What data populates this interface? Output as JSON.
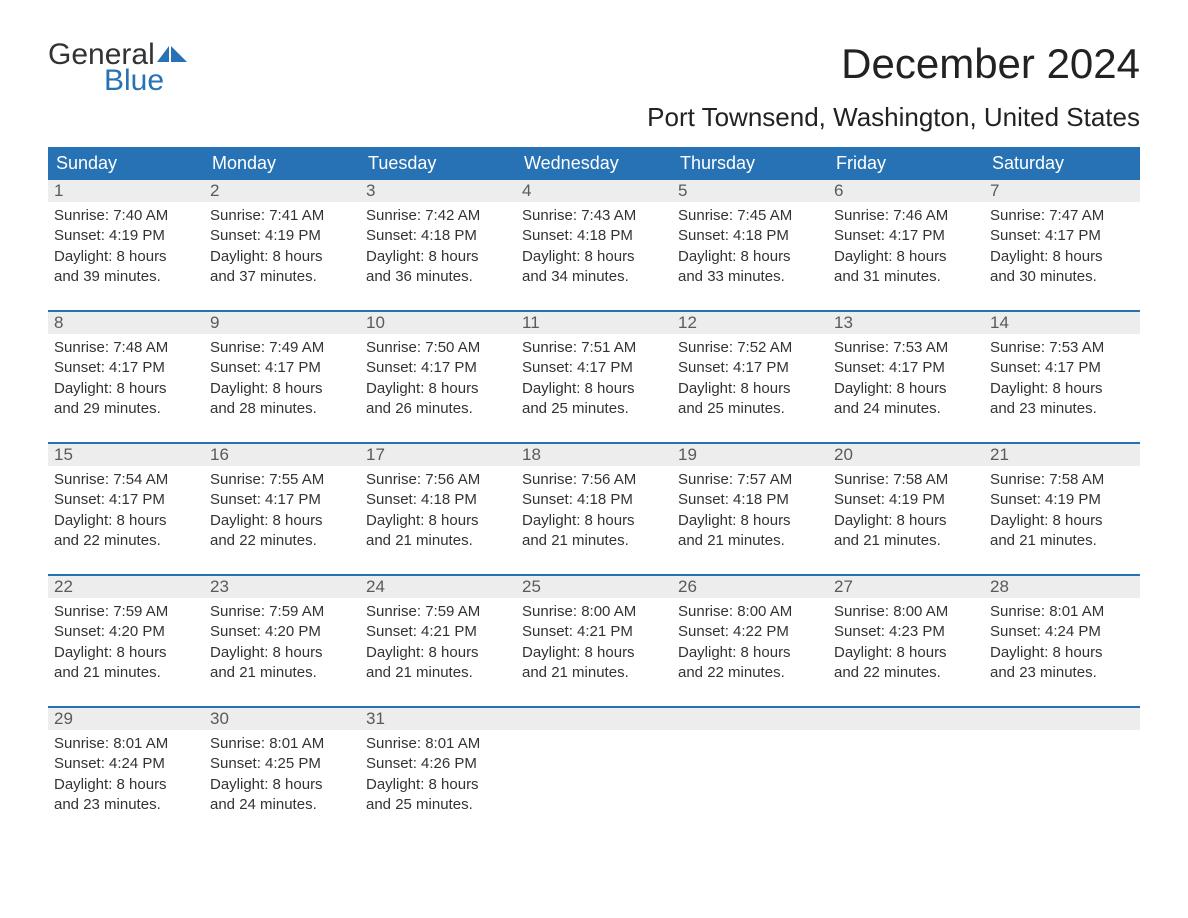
{
  "logo": {
    "line1": "General",
    "line2": "Blue",
    "accent_color": "#2772b5"
  },
  "title": "December 2024",
  "location": "Port Townsend, Washington, United States",
  "colors": {
    "header_bg": "#2772b5",
    "header_text": "#ffffff",
    "daynum_bg": "#ededed",
    "daynum_text": "#5a5a5a",
    "body_text": "#333333",
    "divider": "#2772b5",
    "background": "#ffffff"
  },
  "fonts": {
    "title_size_pt": 32,
    "location_size_pt": 20,
    "header_size_pt": 14,
    "body_size_pt": 11
  },
  "days_of_week": [
    "Sunday",
    "Monday",
    "Tuesday",
    "Wednesday",
    "Thursday",
    "Friday",
    "Saturday"
  ],
  "weeks": [
    [
      {
        "n": "1",
        "sunrise": "Sunrise: 7:40 AM",
        "sunset": "Sunset: 4:19 PM",
        "d1": "Daylight: 8 hours",
        "d2": "and 39 minutes."
      },
      {
        "n": "2",
        "sunrise": "Sunrise: 7:41 AM",
        "sunset": "Sunset: 4:19 PM",
        "d1": "Daylight: 8 hours",
        "d2": "and 37 minutes."
      },
      {
        "n": "3",
        "sunrise": "Sunrise: 7:42 AM",
        "sunset": "Sunset: 4:18 PM",
        "d1": "Daylight: 8 hours",
        "d2": "and 36 minutes."
      },
      {
        "n": "4",
        "sunrise": "Sunrise: 7:43 AM",
        "sunset": "Sunset: 4:18 PM",
        "d1": "Daylight: 8 hours",
        "d2": "and 34 minutes."
      },
      {
        "n": "5",
        "sunrise": "Sunrise: 7:45 AM",
        "sunset": "Sunset: 4:18 PM",
        "d1": "Daylight: 8 hours",
        "d2": "and 33 minutes."
      },
      {
        "n": "6",
        "sunrise": "Sunrise: 7:46 AM",
        "sunset": "Sunset: 4:17 PM",
        "d1": "Daylight: 8 hours",
        "d2": "and 31 minutes."
      },
      {
        "n": "7",
        "sunrise": "Sunrise: 7:47 AM",
        "sunset": "Sunset: 4:17 PM",
        "d1": "Daylight: 8 hours",
        "d2": "and 30 minutes."
      }
    ],
    [
      {
        "n": "8",
        "sunrise": "Sunrise: 7:48 AM",
        "sunset": "Sunset: 4:17 PM",
        "d1": "Daylight: 8 hours",
        "d2": "and 29 minutes."
      },
      {
        "n": "9",
        "sunrise": "Sunrise: 7:49 AM",
        "sunset": "Sunset: 4:17 PM",
        "d1": "Daylight: 8 hours",
        "d2": "and 28 minutes."
      },
      {
        "n": "10",
        "sunrise": "Sunrise: 7:50 AM",
        "sunset": "Sunset: 4:17 PM",
        "d1": "Daylight: 8 hours",
        "d2": "and 26 minutes."
      },
      {
        "n": "11",
        "sunrise": "Sunrise: 7:51 AM",
        "sunset": "Sunset: 4:17 PM",
        "d1": "Daylight: 8 hours",
        "d2": "and 25 minutes."
      },
      {
        "n": "12",
        "sunrise": "Sunrise: 7:52 AM",
        "sunset": "Sunset: 4:17 PM",
        "d1": "Daylight: 8 hours",
        "d2": "and 25 minutes."
      },
      {
        "n": "13",
        "sunrise": "Sunrise: 7:53 AM",
        "sunset": "Sunset: 4:17 PM",
        "d1": "Daylight: 8 hours",
        "d2": "and 24 minutes."
      },
      {
        "n": "14",
        "sunrise": "Sunrise: 7:53 AM",
        "sunset": "Sunset: 4:17 PM",
        "d1": "Daylight: 8 hours",
        "d2": "and 23 minutes."
      }
    ],
    [
      {
        "n": "15",
        "sunrise": "Sunrise: 7:54 AM",
        "sunset": "Sunset: 4:17 PM",
        "d1": "Daylight: 8 hours",
        "d2": "and 22 minutes."
      },
      {
        "n": "16",
        "sunrise": "Sunrise: 7:55 AM",
        "sunset": "Sunset: 4:17 PM",
        "d1": "Daylight: 8 hours",
        "d2": "and 22 minutes."
      },
      {
        "n": "17",
        "sunrise": "Sunrise: 7:56 AM",
        "sunset": "Sunset: 4:18 PM",
        "d1": "Daylight: 8 hours",
        "d2": "and 21 minutes."
      },
      {
        "n": "18",
        "sunrise": "Sunrise: 7:56 AM",
        "sunset": "Sunset: 4:18 PM",
        "d1": "Daylight: 8 hours",
        "d2": "and 21 minutes."
      },
      {
        "n": "19",
        "sunrise": "Sunrise: 7:57 AM",
        "sunset": "Sunset: 4:18 PM",
        "d1": "Daylight: 8 hours",
        "d2": "and 21 minutes."
      },
      {
        "n": "20",
        "sunrise": "Sunrise: 7:58 AM",
        "sunset": "Sunset: 4:19 PM",
        "d1": "Daylight: 8 hours",
        "d2": "and 21 minutes."
      },
      {
        "n": "21",
        "sunrise": "Sunrise: 7:58 AM",
        "sunset": "Sunset: 4:19 PM",
        "d1": "Daylight: 8 hours",
        "d2": "and 21 minutes."
      }
    ],
    [
      {
        "n": "22",
        "sunrise": "Sunrise: 7:59 AM",
        "sunset": "Sunset: 4:20 PM",
        "d1": "Daylight: 8 hours",
        "d2": "and 21 minutes."
      },
      {
        "n": "23",
        "sunrise": "Sunrise: 7:59 AM",
        "sunset": "Sunset: 4:20 PM",
        "d1": "Daylight: 8 hours",
        "d2": "and 21 minutes."
      },
      {
        "n": "24",
        "sunrise": "Sunrise: 7:59 AM",
        "sunset": "Sunset: 4:21 PM",
        "d1": "Daylight: 8 hours",
        "d2": "and 21 minutes."
      },
      {
        "n": "25",
        "sunrise": "Sunrise: 8:00 AM",
        "sunset": "Sunset: 4:21 PM",
        "d1": "Daylight: 8 hours",
        "d2": "and 21 minutes."
      },
      {
        "n": "26",
        "sunrise": "Sunrise: 8:00 AM",
        "sunset": "Sunset: 4:22 PM",
        "d1": "Daylight: 8 hours",
        "d2": "and 22 minutes."
      },
      {
        "n": "27",
        "sunrise": "Sunrise: 8:00 AM",
        "sunset": "Sunset: 4:23 PM",
        "d1": "Daylight: 8 hours",
        "d2": "and 22 minutes."
      },
      {
        "n": "28",
        "sunrise": "Sunrise: 8:01 AM",
        "sunset": "Sunset: 4:24 PM",
        "d1": "Daylight: 8 hours",
        "d2": "and 23 minutes."
      }
    ],
    [
      {
        "n": "29",
        "sunrise": "Sunrise: 8:01 AM",
        "sunset": "Sunset: 4:24 PM",
        "d1": "Daylight: 8 hours",
        "d2": "and 23 minutes."
      },
      {
        "n": "30",
        "sunrise": "Sunrise: 8:01 AM",
        "sunset": "Sunset: 4:25 PM",
        "d1": "Daylight: 8 hours",
        "d2": "and 24 minutes."
      },
      {
        "n": "31",
        "sunrise": "Sunrise: 8:01 AM",
        "sunset": "Sunset: 4:26 PM",
        "d1": "Daylight: 8 hours",
        "d2": "and 25 minutes."
      },
      {
        "n": "",
        "empty": true
      },
      {
        "n": "",
        "empty": true
      },
      {
        "n": "",
        "empty": true
      },
      {
        "n": "",
        "empty": true
      }
    ]
  ]
}
